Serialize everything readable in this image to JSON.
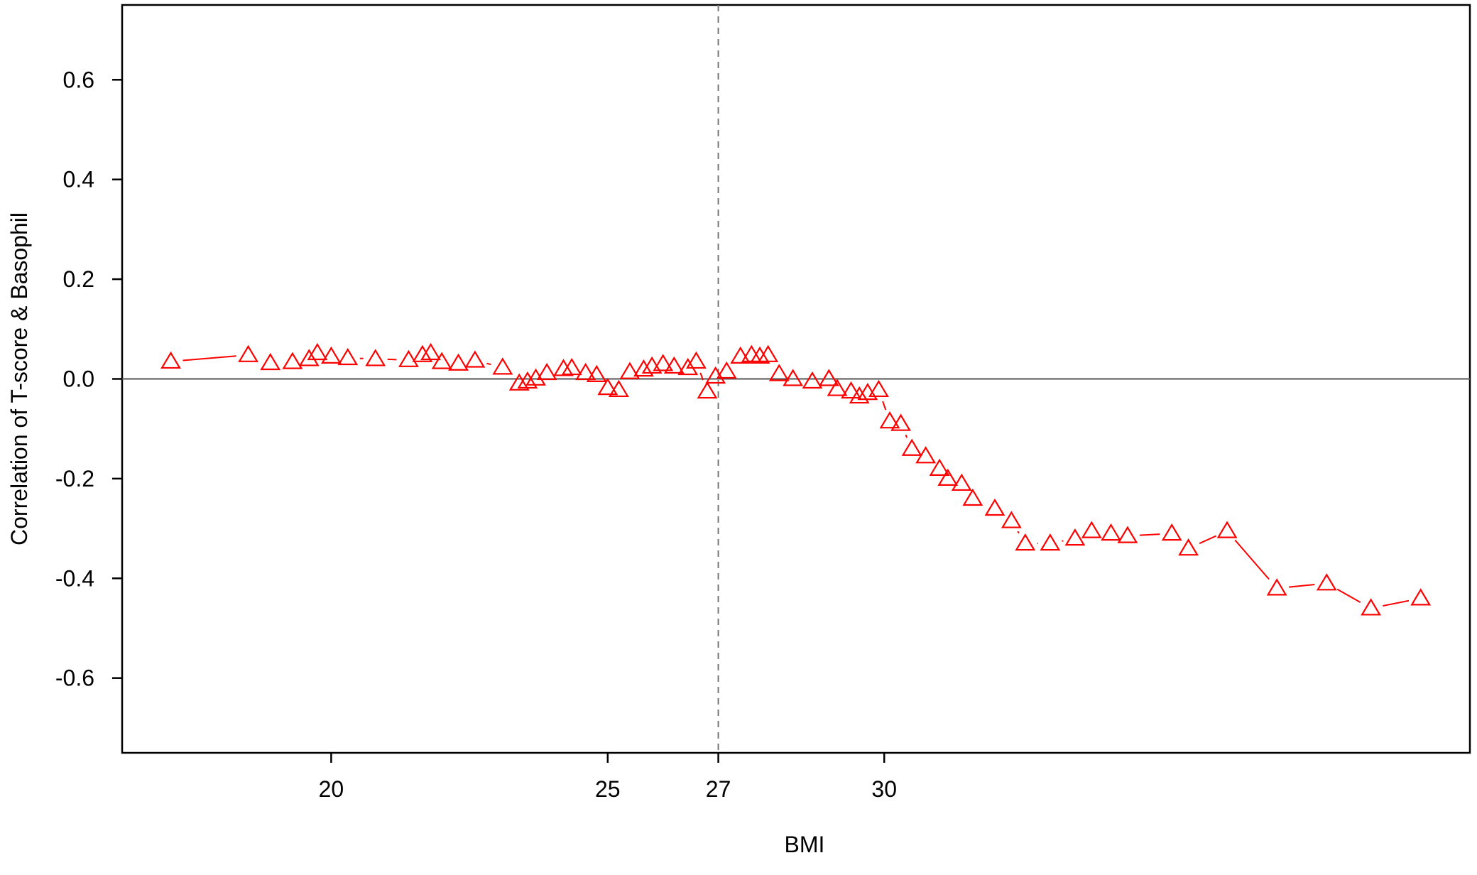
{
  "chart_data": {
    "type": "line",
    "title": "",
    "xlabel": "BMI",
    "ylabel": "Correlation of T-score & Basophil",
    "xlim": [
      16.22,
      40.59
    ],
    "ylim": [
      -0.75,
      0.75
    ],
    "x_ticks": [
      20,
      25,
      27,
      30
    ],
    "y_ticks": [
      -0.6,
      -0.4,
      -0.2,
      0.0,
      0.2,
      0.4,
      0.6
    ],
    "x_tick_labels": [
      "20",
      "25",
      "27",
      "30"
    ],
    "y_tick_labels": [
      "-0.6",
      "-0.4",
      "-0.2",
      "0.0",
      "0.2",
      "0.4",
      "0.6"
    ],
    "reference_lines": {
      "vertical_x": 27,
      "horizontal_y": 0.0
    },
    "grid": false,
    "marker": "open-triangle",
    "colors": {
      "series": "#ff0000",
      "axes": "#000000",
      "hline": "#555555",
      "vline": "#777777"
    },
    "series": [
      {
        "x": [
          17.1,
          18.5,
          18.9,
          19.3,
          19.6,
          19.75,
          20.0,
          20.3,
          20.8,
          21.4,
          21.65,
          21.8,
          22.0,
          22.3,
          22.6,
          23.1,
          23.4,
          23.55,
          23.7,
          23.9,
          24.2,
          24.35,
          24.6,
          24.8,
          25.0,
          25.2,
          25.4,
          25.65,
          25.8,
          26.0,
          26.2,
          26.45,
          26.6,
          26.8,
          26.95,
          27.15,
          27.4,
          27.6,
          27.75,
          27.9,
          28.1,
          28.35,
          28.7,
          29.0,
          29.15,
          29.4,
          29.55,
          29.7,
          29.9,
          30.1,
          30.3,
          30.5,
          30.75,
          31.0,
          31.15,
          31.4,
          31.6,
          32.0,
          32.3,
          32.55,
          33.0,
          33.45,
          33.75,
          34.1,
          34.4,
          35.2,
          35.5,
          36.2,
          37.1,
          38.0,
          38.8,
          39.7
        ],
        "y": [
          0.035,
          0.048,
          0.032,
          0.034,
          0.04,
          0.052,
          0.045,
          0.042,
          0.04,
          0.038,
          0.048,
          0.052,
          0.034,
          0.031,
          0.037,
          0.023,
          -0.009,
          -0.005,
          0.001,
          0.012,
          0.02,
          0.022,
          0.012,
          0.008,
          -0.018,
          -0.022,
          0.014,
          0.019,
          0.025,
          0.03,
          0.025,
          0.022,
          0.035,
          -0.025,
          0.005,
          0.015,
          0.045,
          0.048,
          0.045,
          0.048,
          0.01,
          0.0,
          -0.005,
          0.0,
          -0.02,
          -0.025,
          -0.035,
          -0.028,
          -0.022,
          -0.085,
          -0.09,
          -0.14,
          -0.155,
          -0.18,
          -0.2,
          -0.21,
          -0.24,
          -0.26,
          -0.285,
          -0.33,
          -0.33,
          -0.32,
          -0.305,
          -0.31,
          -0.315,
          -0.31,
          -0.34,
          -0.305,
          -0.42,
          -0.41,
          -0.46,
          -0.44
        ]
      }
    ]
  }
}
